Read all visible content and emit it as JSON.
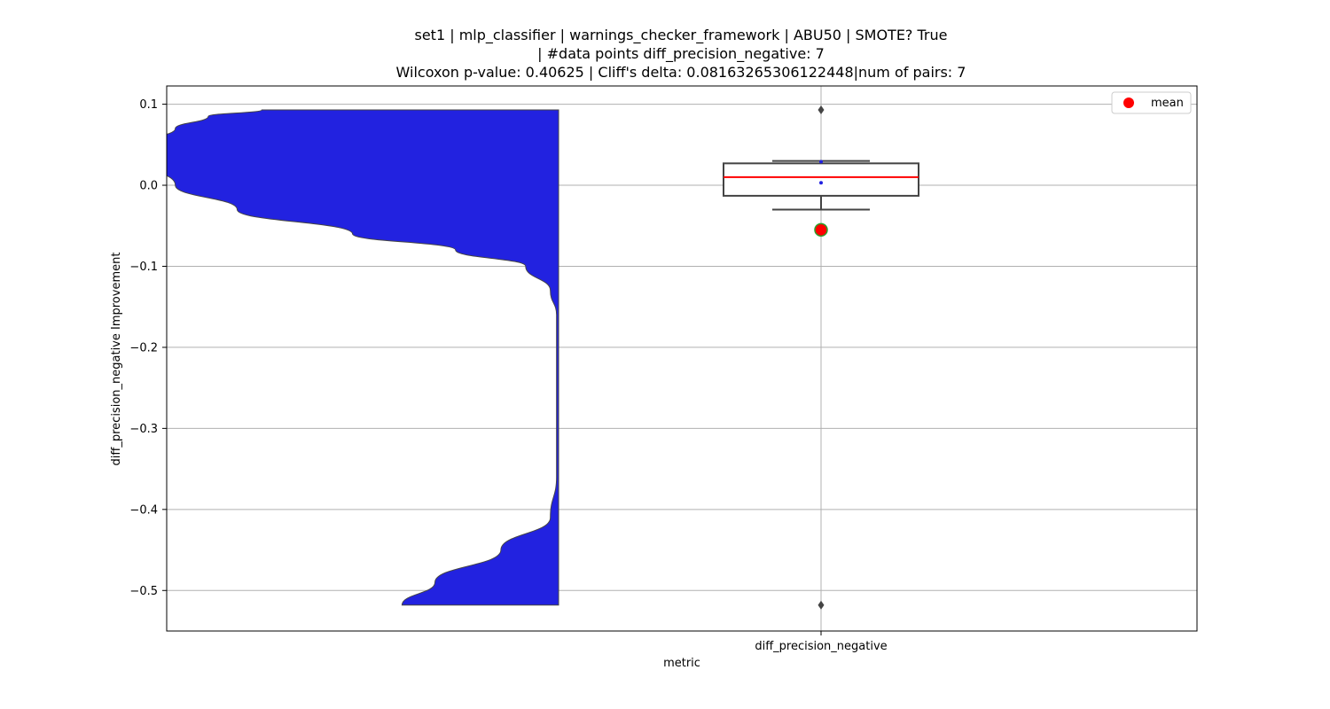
{
  "chart_data": {
    "type": "violin",
    "title_lines": [
      "set1 | mlp_classifier | warnings_checker_framework | ABU50 | SMOTE? True",
      "| #data points diff_precision_negative: 7",
      "Wilcoxon p-value: 0.40625 | Cliff's delta: 0.08163265306122448|num of pairs: 7"
    ],
    "xlabel": "metric",
    "ylabel": "diff_precision_negative Improvement",
    "categories": [
      "diff_precision_negative"
    ],
    "ylim": [
      -0.55,
      0.1225
    ],
    "yticks": [
      0.1,
      0.0,
      -0.1,
      -0.2,
      -0.3,
      -0.4,
      -0.5
    ],
    "ytick_labels": [
      "0.1",
      "0.0",
      "−0.1",
      "−0.2",
      "−0.3",
      "−0.4",
      "−0.5"
    ],
    "grid": true,
    "legend": {
      "position": "top-right",
      "entries": [
        {
          "label": "mean",
          "color": "#ff0000"
        }
      ]
    },
    "violin": {
      "color": "#2222e0",
      "side": "left",
      "profile": [
        {
          "y": 0.093,
          "w": 0.72
        },
        {
          "y": 0.085,
          "w": 0.85
        },
        {
          "y": 0.07,
          "w": 0.93
        },
        {
          "y": 0.05,
          "w": 1.02
        },
        {
          "y": 0.044,
          "w": 1.04
        },
        {
          "y": 0.03,
          "w": 1.0
        },
        {
          "y": 0.0,
          "w": 0.93
        },
        {
          "y": -0.03,
          "w": 0.78
        },
        {
          "y": -0.06,
          "w": 0.5
        },
        {
          "y": -0.08,
          "w": 0.25
        },
        {
          "y": -0.1,
          "w": 0.08
        },
        {
          "y": -0.13,
          "w": 0.02
        },
        {
          "y": -0.16,
          "w": 0.005
        },
        {
          "y": -0.36,
          "w": 0.005
        },
        {
          "y": -0.41,
          "w": 0.02
        },
        {
          "y": -0.45,
          "w": 0.14
        },
        {
          "y": -0.49,
          "w": 0.3
        },
        {
          "y": -0.518,
          "w": 0.38
        }
      ]
    },
    "box": {
      "q1": -0.013,
      "median": 0.01,
      "q3": 0.027,
      "whisker_low": -0.03,
      "whisker_high": 0.03,
      "mean": -0.055,
      "outliers": [
        0.093,
        -0.518
      ],
      "points": [
        0.029,
        0.003
      ],
      "median_color": "#ff0000",
      "mean_color": "#ff0000",
      "mean_edge_color": "#2ca02c",
      "line_color": "#444444"
    }
  }
}
